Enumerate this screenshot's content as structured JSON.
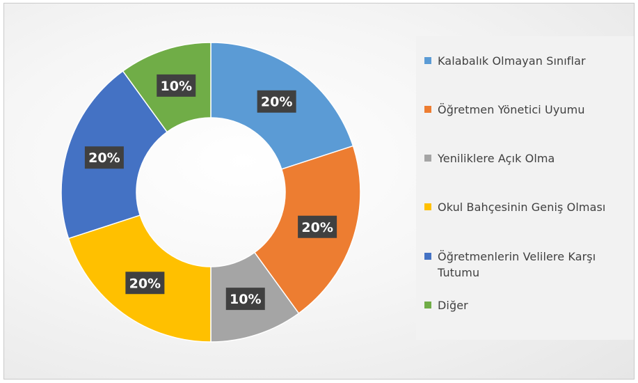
{
  "chart_data": {
    "type": "pie",
    "donut": true,
    "categories": [
      "Kalabalık Olmayan Sınıflar",
      "Öğretmen Yönetici Uyumu",
      "Yeniliklere Açık Olma",
      "Okul Bahçesinin Geniş Olması",
      "Öğretmenlerin Velilere Karşı Tutumu",
      "Diğer"
    ],
    "values": [
      20,
      20,
      10,
      20,
      20,
      10
    ],
    "data_labels": [
      "20%",
      "20%",
      "10%",
      "20%",
      "20%",
      "10%"
    ],
    "colors": [
      "#5B9BD5",
      "#ED7D31",
      "#A5A5A5",
      "#FFC000",
      "#4472C4",
      "#70AD47"
    ],
    "legend_position": "right",
    "label_box_color": "#404040",
    "label_text_color": "#ffffff"
  }
}
